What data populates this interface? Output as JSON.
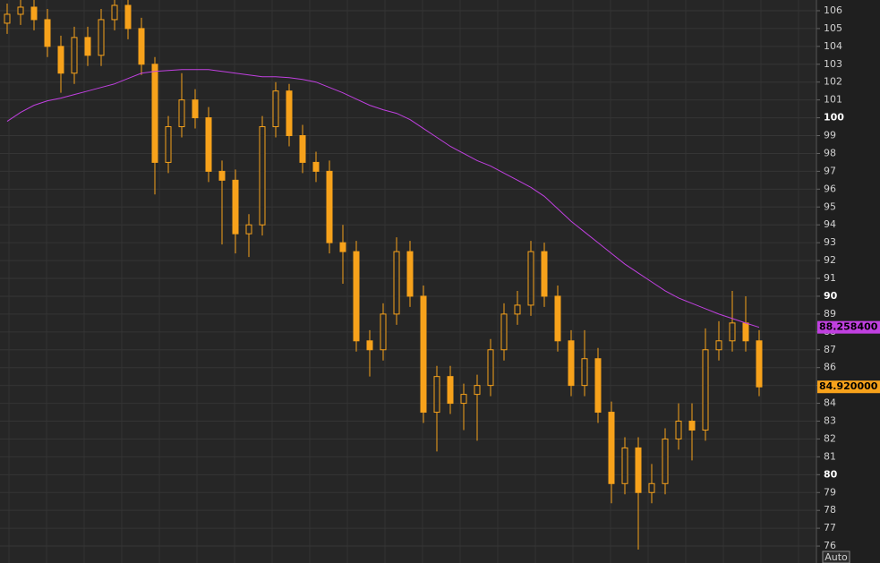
{
  "chart_data": {
    "type": "candlestick",
    "color": "#f7a21b",
    "ylim": [
      75.05,
      106.6
    ],
    "yticks": [
      76,
      77,
      78,
      79,
      80,
      81,
      82,
      83,
      84,
      85,
      86,
      87,
      88,
      89,
      90,
      91,
      92,
      93,
      94,
      95,
      96,
      97,
      98,
      99,
      100,
      101,
      102,
      103,
      104,
      105,
      106
    ],
    "grid": true,
    "scale_mode": "Auto",
    "open": [
      105.3,
      105.8,
      106.2,
      105.5,
      104,
      102.5,
      104.5,
      103.5,
      105.5,
      106.3,
      105,
      103,
      97.5,
      99.5,
      101,
      100,
      97,
      96.5,
      93.5,
      94,
      99.5,
      101.5,
      99,
      97.5,
      97,
      93,
      92.5,
      87.5,
      87,
      89,
      92.5,
      90,
      83.5,
      85.5,
      84,
      84.5,
      85,
      87,
      89,
      89.5,
      92.5,
      90,
      87.5,
      85,
      86.5,
      83.5,
      79.5,
      81.5,
      79,
      79.5,
      82,
      83,
      82.5,
      87,
      87.5,
      88.5,
      87.5
    ],
    "high": [
      106.4,
      106.8,
      106.8,
      106.1,
      104.6,
      105.1,
      105.1,
      106.1,
      106.7,
      106.6,
      105.6,
      103.4,
      100.1,
      102.5,
      101.6,
      100.6,
      97.6,
      97.1,
      94.6,
      100.1,
      102,
      101.9,
      99.6,
      98.1,
      97.6,
      94,
      93.1,
      88.1,
      89.6,
      93.3,
      93.1,
      90.6,
      86.1,
      86.1,
      85.1,
      85.6,
      87.6,
      89.6,
      90.3,
      93.1,
      93,
      90.6,
      88.1,
      88.1,
      87.1,
      84.1,
      82.1,
      82.1,
      80.6,
      82.6,
      84,
      84,
      88.2,
      88.6,
      90.3,
      90,
      88.1
    ],
    "low": [
      104.7,
      105.2,
      104.9,
      103.4,
      101.4,
      101.9,
      102.9,
      102.9,
      104.9,
      104.4,
      102.4,
      95.7,
      96.9,
      98.9,
      99.4,
      96.4,
      92.9,
      92.4,
      92.2,
      93.4,
      98.9,
      98.4,
      96.9,
      96.4,
      92.4,
      90.7,
      86.9,
      85.5,
      86.4,
      88.4,
      89.4,
      82.9,
      81.3,
      83.4,
      82.5,
      81.9,
      84.4,
      86.4,
      88.4,
      88.9,
      89.4,
      86.9,
      84.4,
      84.4,
      82.9,
      78.4,
      78.9,
      75.8,
      78.4,
      78.9,
      81.4,
      80.8,
      81.9,
      86.4,
      86.9,
      86.9,
      84.4
    ],
    "close": [
      105.8,
      106.2,
      105.5,
      104,
      102.5,
      104.5,
      103.5,
      105.5,
      106.3,
      105,
      103,
      97.5,
      99.5,
      101,
      100,
      97,
      96.5,
      93.5,
      94,
      99.5,
      101.5,
      99,
      97.5,
      97,
      93,
      92.5,
      87.5,
      87,
      89,
      92.5,
      90,
      83.5,
      85.5,
      84,
      84.5,
      85,
      87,
      89,
      89.5,
      92.5,
      90,
      87.5,
      85,
      86.5,
      83.5,
      79.5,
      81.5,
      79,
      79.5,
      82,
      83,
      82.5,
      87,
      87.5,
      88.5,
      87.5,
      84.92
    ],
    "last_label": "84.920000",
    "moving_average": {
      "color": "#c040e0",
      "values": [
        99.8,
        100.3,
        100.7,
        100.95,
        101.1,
        101.3,
        101.5,
        101.7,
        101.9,
        102.2,
        102.5,
        102.6,
        102.65,
        102.7,
        102.7,
        102.7,
        102.6,
        102.5,
        102.4,
        102.3,
        102.3,
        102.25,
        102.15,
        102,
        101.7,
        101.4,
        101.05,
        100.7,
        100.45,
        100.25,
        99.9,
        99.4,
        98.9,
        98.4,
        98,
        97.6,
        97.3,
        96.9,
        96.5,
        96.1,
        95.6,
        94.9,
        94.2,
        93.6,
        93,
        92.4,
        91.8,
        91.3,
        90.8,
        90.3,
        89.9,
        89.6,
        89.3,
        89,
        88.75,
        88.5,
        88.2584
      ],
      "last_label": "88.258400"
    }
  }
}
